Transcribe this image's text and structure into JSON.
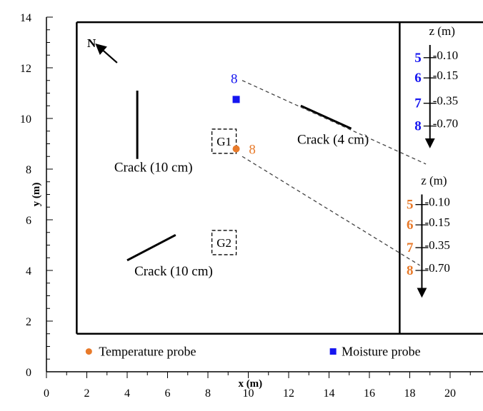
{
  "colors": {
    "temperature": "#e87a2a",
    "moisture": "#1515f0",
    "ink": "#000000"
  },
  "axes": {
    "x_label": "x (m)",
    "y_label": "y (m)",
    "x_range": [
      0,
      22
    ],
    "y_range": [
      0,
      14
    ],
    "x_ticks": [
      0,
      2,
      4,
      6,
      8,
      10,
      12,
      14,
      16,
      18,
      20
    ],
    "y_ticks": [
      0,
      2,
      4,
      6,
      8,
      10,
      12,
      14
    ]
  },
  "site": {
    "plot_bounds": {
      "x": [
        1.5,
        22
      ],
      "y": [
        1.5,
        13.8
      ]
    },
    "divider_x": 17.5,
    "north_label": "N",
    "north_arrow": {
      "from": [
        3.5,
        12.2
      ],
      "to": [
        2.5,
        12.9
      ]
    }
  },
  "cracks": [
    {
      "label": "Crack (10 cm)",
      "line": [
        [
          4.5,
          11.1
        ],
        [
          4.5,
          8.4
        ]
      ],
      "label_at": [
        5.3,
        7.9
      ]
    },
    {
      "label": "Crack (4 cm)",
      "line": [
        [
          12.6,
          10.5
        ],
        [
          15.1,
          9.6
        ]
      ],
      "label_at": [
        14.2,
        9.0
      ]
    },
    {
      "label": "Crack (10 cm)",
      "line": [
        [
          4.0,
          4.4
        ],
        [
          6.4,
          5.4
        ]
      ],
      "label_at": [
        6.3,
        3.8
      ]
    }
  ],
  "zones": [
    {
      "label": "G1",
      "center": [
        8.8,
        9.1
      ]
    },
    {
      "label": "G2",
      "center": [
        8.8,
        5.1
      ]
    }
  ],
  "probes": [
    {
      "type": "moisture",
      "label": "8",
      "pos": [
        9.4,
        10.75
      ],
      "label_at": [
        9.3,
        11.4
      ]
    },
    {
      "type": "temperature",
      "label": "8",
      "pos": [
        9.4,
        8.8
      ],
      "label_at": [
        10.2,
        8.6
      ]
    }
  ],
  "leaders": [
    {
      "from": [
        9.7,
        11.5
      ],
      "to": [
        18.8,
        8.2
      ]
    },
    {
      "from": [
        9.7,
        8.5
      ],
      "to": [
        18.5,
        4.2
      ]
    }
  ],
  "profiles": [
    {
      "type": "moisture",
      "header": "z (m)",
      "axis_x": 19.0,
      "header_at": [
        19.6,
        13.3
      ],
      "axis_top": 12.9,
      "axis_bottom": 8.9,
      "depths": [
        {
          "num": "5",
          "z": "-0.10",
          "y": 12.4
        },
        {
          "num": "6",
          "z": "-0.15",
          "y": 11.6
        },
        {
          "num": "7",
          "z": "-0.35",
          "y": 10.6
        },
        {
          "num": "8",
          "z": "-0.70",
          "y": 9.7
        }
      ]
    },
    {
      "type": "temperature",
      "header": "z (m)",
      "axis_x": 18.6,
      "header_at": [
        19.2,
        7.4
      ],
      "axis_top": 7.0,
      "axis_bottom": 3.0,
      "depths": [
        {
          "num": "5",
          "z": "-0.10",
          "y": 6.6
        },
        {
          "num": "6",
          "z": "-0.15",
          "y": 5.8
        },
        {
          "num": "7",
          "z": "-0.35",
          "y": 4.9
        },
        {
          "num": "8",
          "z": "-0.70",
          "y": 4.0
        }
      ]
    }
  ],
  "legend": {
    "temperature_label": "Temperature probe",
    "moisture_label": "Moisture probe",
    "y": 0.8,
    "temperature_x": 2.1,
    "moisture_x": 14.2
  }
}
